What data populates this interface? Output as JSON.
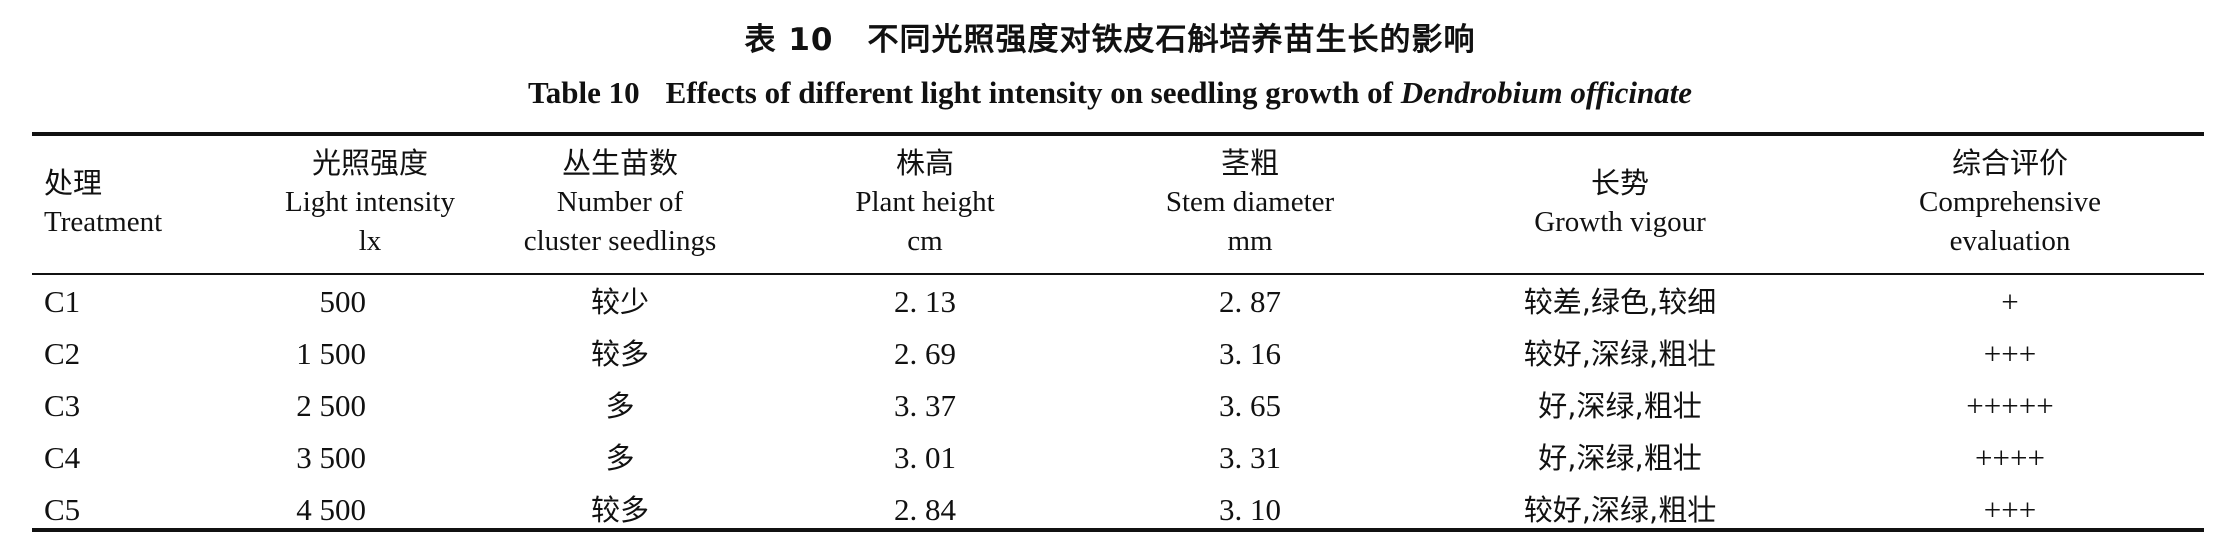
{
  "caption": {
    "zh_number": "表 10",
    "zh_title": "不同光照强度对铁皮石斛培养苗生长的影响",
    "en_number": "Table 10",
    "en_title": "Effects of different light intensity on seedling growth of",
    "en_species": "Dendrobium officinate"
  },
  "headers": [
    {
      "zh": "处理",
      "en": [
        "Treatment"
      ]
    },
    {
      "zh": "光照强度",
      "en": [
        "Light intensity",
        "lx"
      ]
    },
    {
      "zh": "丛生苗数",
      "en": [
        "Number of",
        "cluster seedlings"
      ]
    },
    {
      "zh": "株高",
      "en": [
        "Plant height",
        "cm"
      ]
    },
    {
      "zh": "茎粗",
      "en": [
        "Stem diameter",
        "mm"
      ]
    },
    {
      "zh": "长势",
      "en": [
        "Growth vigour"
      ]
    },
    {
      "zh": "综合评价",
      "en": [
        "Comprehensive",
        "evaluation"
      ]
    }
  ],
  "rows": [
    {
      "treatment": "C1",
      "light": "500",
      "seedlings": "较少",
      "height": "2. 13",
      "diameter": "2. 87",
      "vigour": "较差,绿色,较细",
      "evaluation": "+"
    },
    {
      "treatment": "C2",
      "light": "1 500",
      "seedlings": "较多",
      "height": "2. 69",
      "diameter": "3. 16",
      "vigour": "较好,深绿,粗壮",
      "evaluation": "+++"
    },
    {
      "treatment": "C3",
      "light": "2 500",
      "seedlings": "多",
      "height": "3. 37",
      "diameter": "3. 65",
      "vigour": "好,深绿,粗壮",
      "evaluation": "+++++"
    },
    {
      "treatment": "C4",
      "light": "3 500",
      "seedlings": "多",
      "height": "3. 01",
      "diameter": "3. 31",
      "vigour": "好,深绿,粗壮",
      "evaluation": "++++"
    },
    {
      "treatment": "C5",
      "light": "4 500",
      "seedlings": "较多",
      "height": "2. 84",
      "diameter": "3. 10",
      "vigour": "较好,深绿,粗壮",
      "evaluation": "+++"
    }
  ]
}
